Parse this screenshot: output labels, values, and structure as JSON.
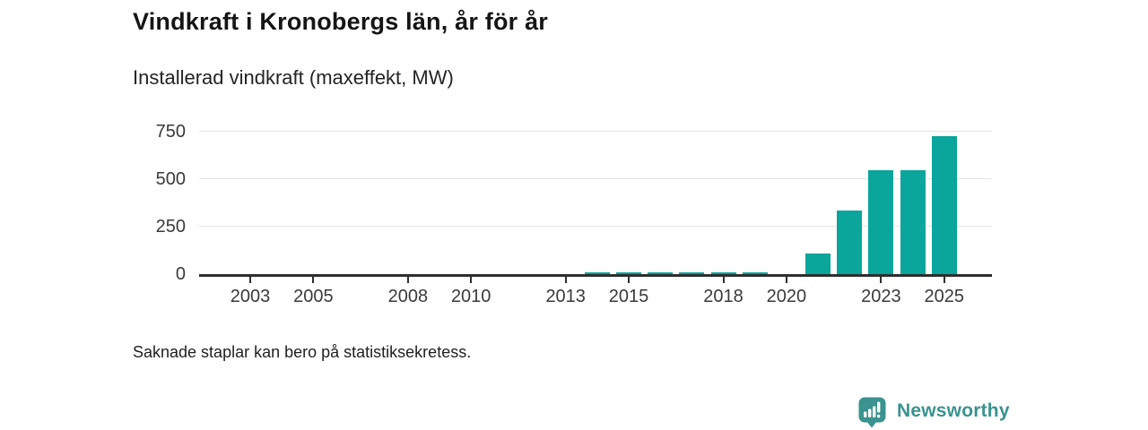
{
  "header": {
    "title": "Vindkraft i Kronobergs län, år för år",
    "subtitle": "Installerad vindkraft (maxeffekt, MW)"
  },
  "footnote": "Saknade staplar kan bero på statistiksekretess.",
  "logo": {
    "text": "Newsworthy",
    "icon": "newsworthy-bar-chart-pin-icon"
  },
  "colors": {
    "bar": "#0aa59b",
    "axis": "#2e2e2e",
    "gridline": "#e4e4e4",
    "tick_label": "#3a3a3a",
    "title": "#151515",
    "logo": "#3a938e"
  },
  "chart_data": {
    "type": "bar",
    "title": "Vindkraft i Kronobergs län, år för år",
    "subtitle": "Installerad vindkraft (maxeffekt, MW)",
    "xlabel": "",
    "ylabel": "Installerad vindkraft (maxeffekt, MW)",
    "unit": "MW",
    "x": [
      2002,
      2003,
      2004,
      2005,
      2006,
      2007,
      2008,
      2009,
      2010,
      2011,
      2012,
      2013,
      2014,
      2015,
      2016,
      2017,
      2018,
      2019,
      2020,
      2021,
      2022,
      2023,
      2024,
      2025
    ],
    "series": [
      {
        "name": "Installerad vindkraft (maxeffekt, MW)",
        "values": [
          null,
          null,
          null,
          null,
          null,
          null,
          null,
          null,
          null,
          null,
          null,
          null,
          10,
          10,
          10,
          10,
          10,
          10,
          null,
          110,
          335,
          545,
          545,
          725
        ]
      }
    ],
    "xticks": [
      2003,
      2005,
      2008,
      2010,
      2013,
      2015,
      2018,
      2020,
      2023,
      2025
    ],
    "yticks": [
      0,
      250,
      500,
      750
    ],
    "ylim": [
      0,
      780
    ],
    "grid": "horizontal",
    "legend": "none",
    "missing_bars_note": "Saknade staplar kan bero på statistiksekretess."
  }
}
